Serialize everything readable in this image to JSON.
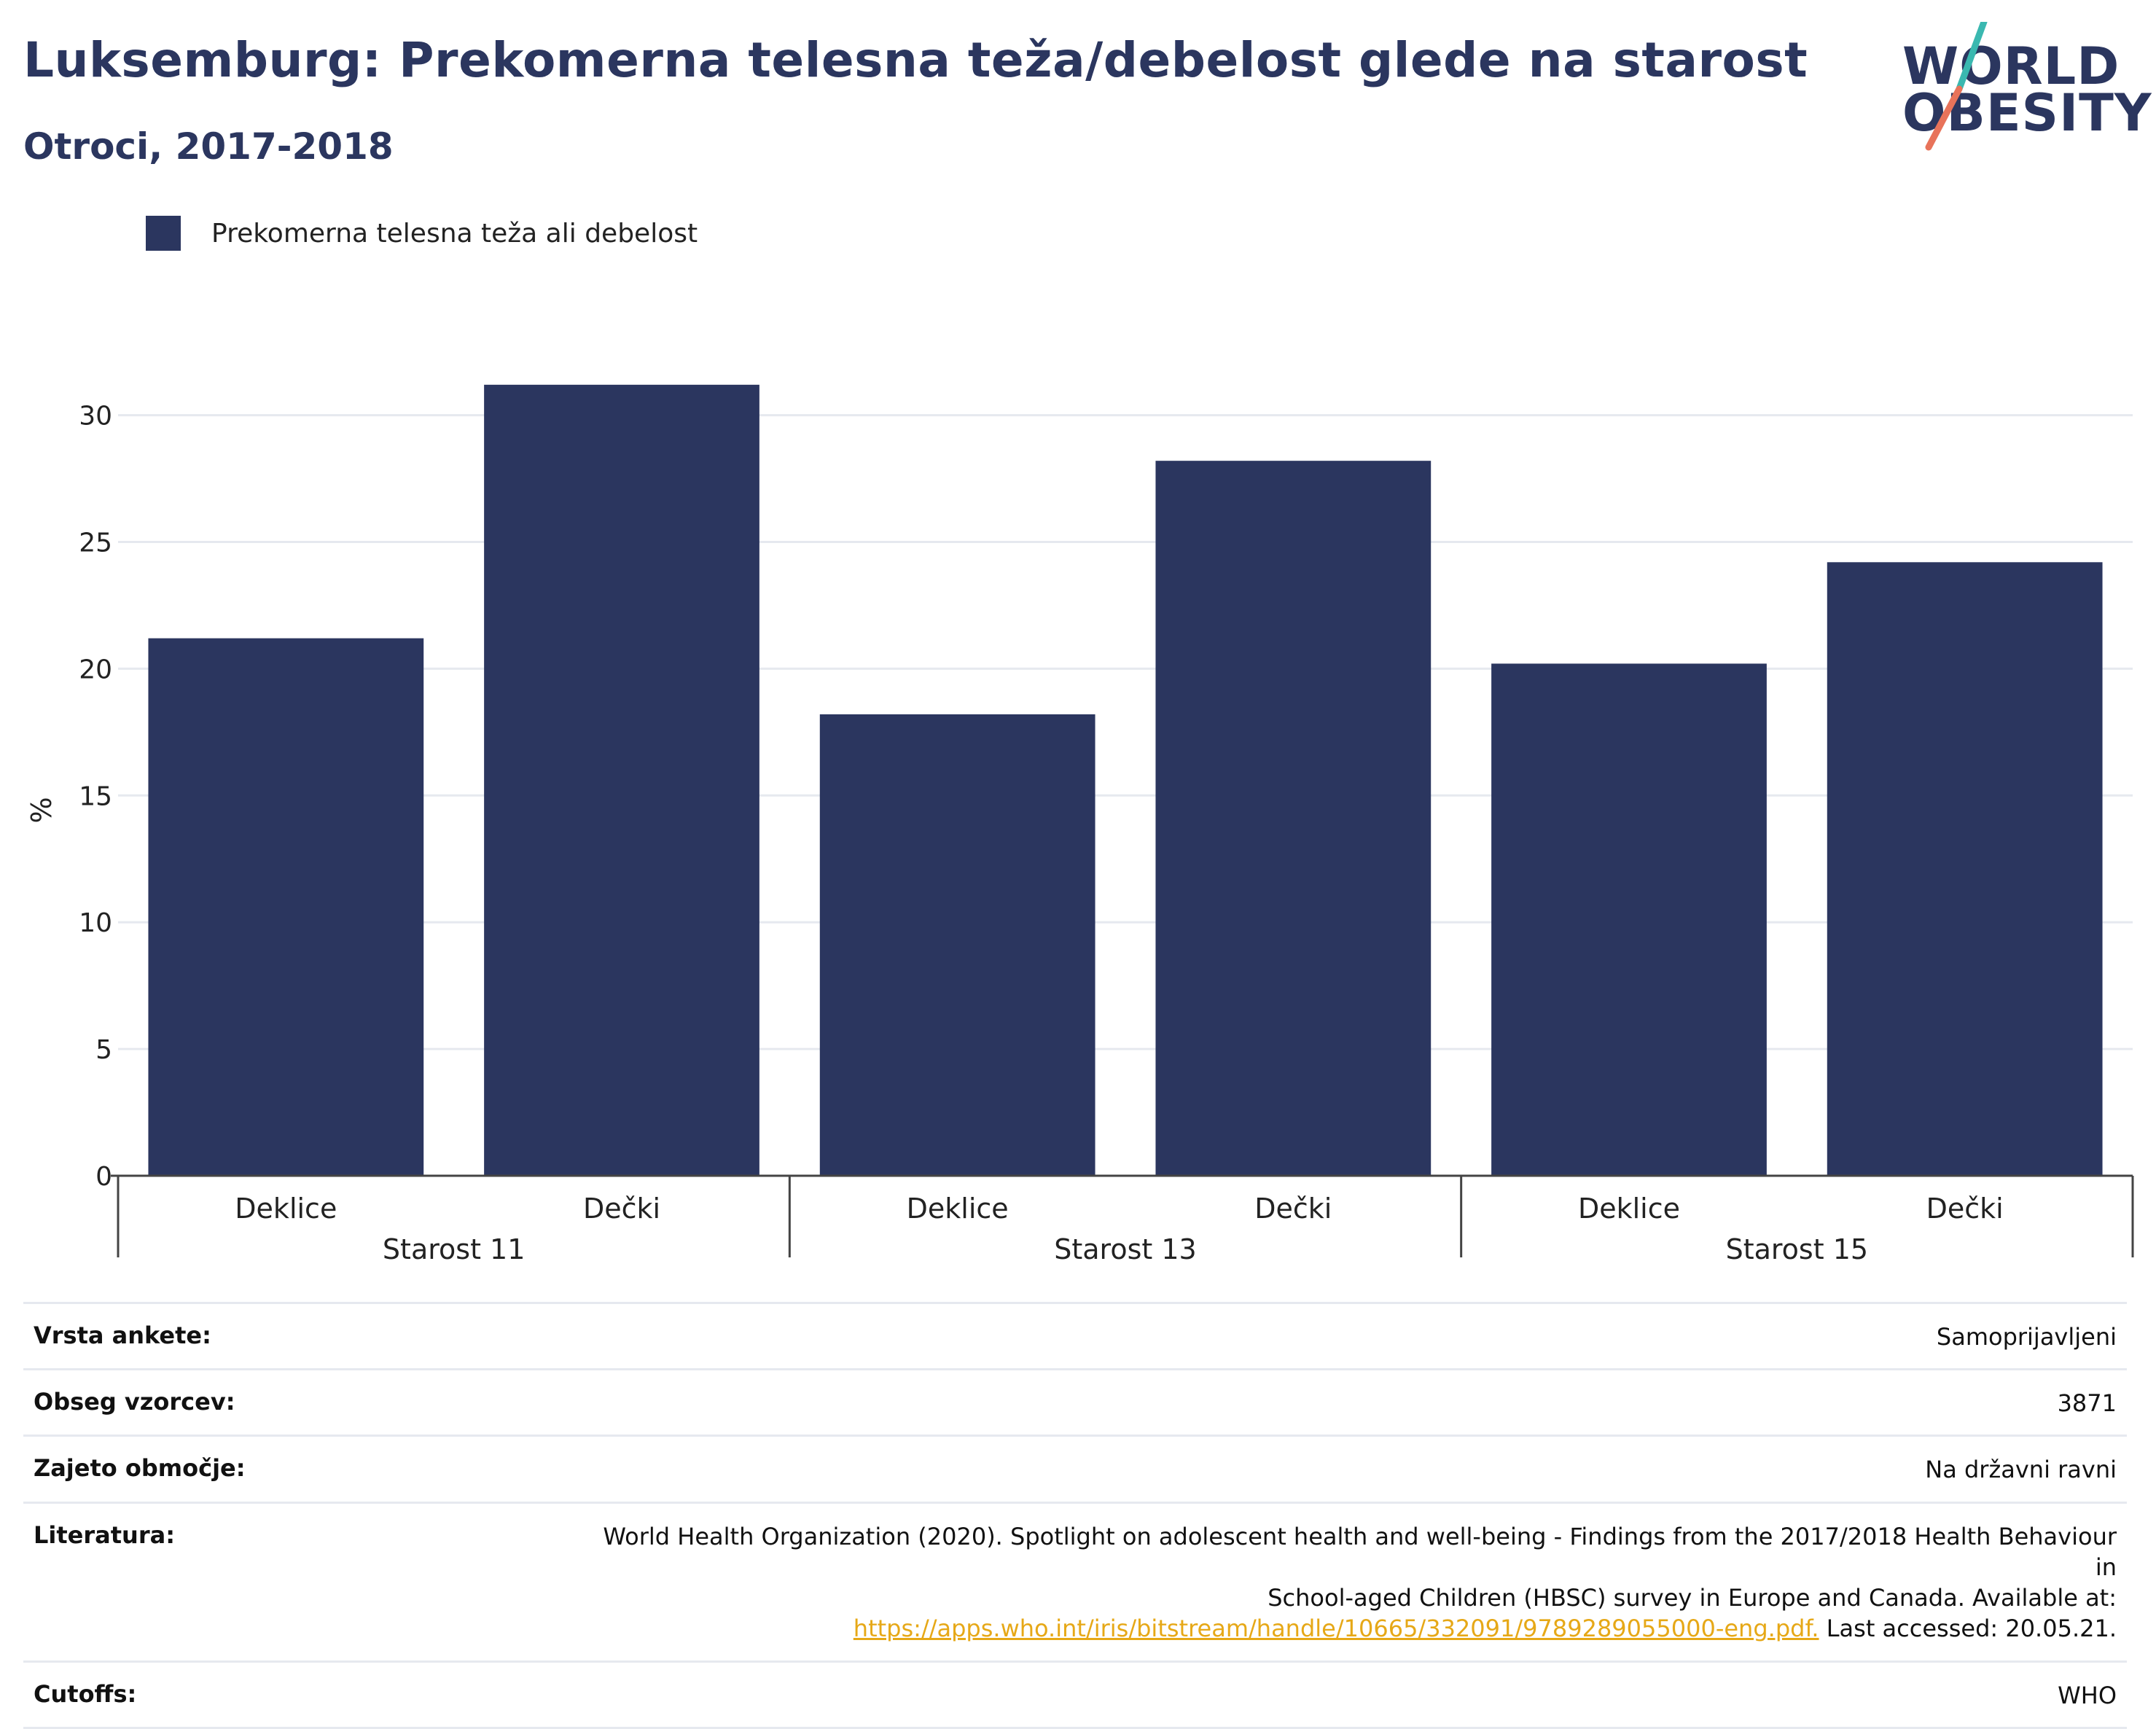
{
  "header": {
    "title": "Luksemburg: Prekomerna telesna teža/debelost glede na starost",
    "subtitle": "Otroci, 2017-2018"
  },
  "logo": {
    "line1": "WORLD",
    "line2": "OBESITY",
    "accent_teal": "#3ab8b0",
    "accent_coral": "#e8735a"
  },
  "colors": {
    "bar": "#2b365f",
    "grid": "#e6e9ef",
    "axis": "#444444"
  },
  "chart_data": {
    "type": "bar",
    "title": "Luksemburg: Prekomerna telesna teža/debelost glede na starost",
    "subtitle": "Otroci, 2017-2018",
    "ylabel": "%",
    "xlabel": "",
    "ylim": [
      0,
      32
    ],
    "yticks": [
      0,
      5,
      10,
      15,
      20,
      25,
      30
    ],
    "grid": true,
    "legend_position": "top-left",
    "groups": [
      "Starost 11",
      "Starost 13",
      "Starost 15"
    ],
    "categories": [
      "Deklice",
      "Dečki",
      "Deklice",
      "Dečki",
      "Deklice",
      "Dečki"
    ],
    "series": [
      {
        "name": "Prekomerna telesna teža ali debelost",
        "values": [
          21.2,
          31.2,
          18.2,
          28.2,
          20.2,
          24.2
        ]
      }
    ]
  },
  "info": {
    "rows": [
      {
        "label": "Vrsta ankete:",
        "value": "Samoprijavljeni"
      },
      {
        "label": "Obseg vzorcev:",
        "value": "3871"
      },
      {
        "label": "Zajeto območje:",
        "value": "Na državni ravni"
      }
    ],
    "reference": {
      "label": "Literatura:",
      "text_line1": "World Health Organization (2020). Spotlight on adolescent health and well-being - Findings from the 2017/2018 Health Behaviour in",
      "text_line2": "School-aged Children (HBSC) survey in Europe and Canada. Available at:",
      "link": "https://apps.who.int/iris/bitstream/handle/10665/332091/9789289055000-eng.pdf.",
      "accessed": " Last accessed: 20.05.21."
    },
    "cutoffs": {
      "label": "Cutoffs:",
      "value": "WHO"
    }
  }
}
